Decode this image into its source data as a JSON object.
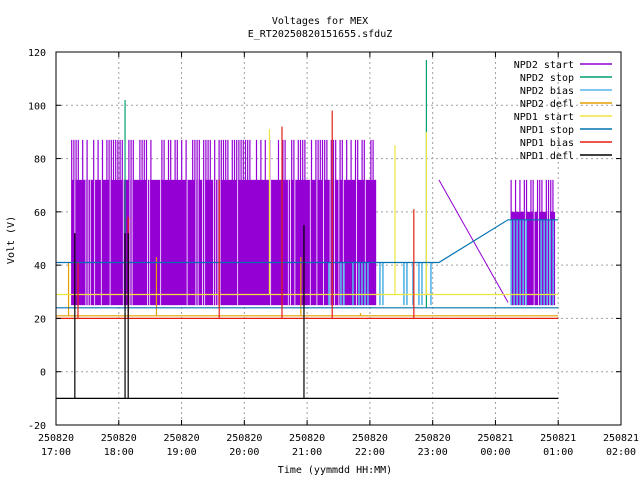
{
  "chart_data": {
    "type": "line",
    "title": "Voltages for MEX",
    "subtitle": "E_RT20250820151655.sfduZ",
    "xlabel": "Time (yymmdd HH:MM)",
    "ylabel": "Volt (V)",
    "ylim": [
      -20,
      120
    ],
    "yticks": [
      -20,
      0,
      20,
      40,
      60,
      80,
      100,
      120
    ],
    "xlim": [
      "2025-08-20 17:00",
      "2025-08-21 02:00"
    ],
    "xticks": [
      {
        "date": "250820",
        "time": "17:00",
        "h": 17
      },
      {
        "date": "250820",
        "time": "18:00",
        "h": 18
      },
      {
        "date": "250820",
        "time": "19:00",
        "h": 19
      },
      {
        "date": "250820",
        "time": "20:00",
        "h": 20
      },
      {
        "date": "250820",
        "time": "21:00",
        "h": 21
      },
      {
        "date": "250820",
        "time": "22:00",
        "h": 22
      },
      {
        "date": "250820",
        "time": "23:00",
        "h": 23
      },
      {
        "date": "250821",
        "time": "00:00",
        "h": 24
      },
      {
        "date": "250821",
        "time": "01:00",
        "h": 25
      },
      {
        "date": "250821",
        "time": "02:00",
        "h": 26
      }
    ],
    "grid": true,
    "legend_position": "top-right",
    "series": [
      {
        "name": "NPD2 start",
        "color": "#9400d3",
        "style": "square-wave",
        "segments": [
          {
            "t0": 17.25,
            "t1": 22.1,
            "low": 25,
            "high": 87,
            "mid": 72
          },
          {
            "t0": 24.25,
            "t1": 24.95,
            "low": 25,
            "high": 72,
            "mid": 60
          }
        ],
        "bridge": [
          [
            23.1,
            72
          ],
          [
            24.2,
            26
          ]
        ]
      },
      {
        "name": "NPD2 stop",
        "color": "#009e73",
        "style": "spikes",
        "base": 24,
        "spikes": [
          [
            18.1,
            102
          ],
          [
            18.85,
            24
          ],
          [
            22.9,
            117
          ]
        ]
      },
      {
        "name": "NPD2 bias",
        "color": "#56b4e9",
        "style": "steps-low",
        "segments": [
          {
            "t0": 21.3,
            "t1": 23.1,
            "low": 25,
            "high": 41
          },
          {
            "t0": 24.25,
            "t1": 24.95,
            "low": 25,
            "high": 57
          }
        ]
      },
      {
        "name": "NPD2 defl",
        "color": "#e69f00",
        "style": "flat",
        "points": [
          [
            17.0,
            21
          ],
          [
            25.0,
            21
          ]
        ],
        "spikes": [
          [
            17.2,
            41
          ],
          [
            18.6,
            43
          ],
          [
            20.9,
            43
          ],
          [
            21.85,
            22
          ]
        ]
      },
      {
        "name": "NPD1 start",
        "color": "#f0e442",
        "style": "flat",
        "points": [
          [
            17.0,
            29
          ],
          [
            25.0,
            29
          ]
        ],
        "spikes": [
          [
            20.4,
            91
          ],
          [
            22.4,
            85
          ],
          [
            22.9,
            90
          ]
        ]
      },
      {
        "name": "NPD1 stop",
        "color": "#0072b2",
        "style": "flat",
        "points": [
          [
            17.0,
            41
          ],
          [
            23.1,
            41
          ],
          [
            24.2,
            57
          ],
          [
            25.0,
            57
          ]
        ],
        "secondary": [
          [
            17.0,
            24
          ],
          [
            25.0,
            24
          ]
        ]
      },
      {
        "name": "NPD1 bias",
        "color": "#e51e10",
        "style": "flat",
        "points": [
          [
            17.0,
            20
          ],
          [
            25.0,
            20
          ]
        ],
        "spikes": [
          [
            17.35,
            41
          ],
          [
            18.15,
            58
          ],
          [
            19.6,
            72
          ],
          [
            20.6,
            92
          ],
          [
            21.4,
            98
          ],
          [
            22.7,
            61
          ]
        ]
      },
      {
        "name": "NPD1 defl",
        "color": "#000000",
        "style": "flat",
        "points": [
          [
            17.0,
            -10
          ],
          [
            25.0,
            -10
          ]
        ],
        "spikes": [
          [
            17.3,
            52
          ],
          [
            18.1,
            52
          ],
          [
            18.15,
            52
          ],
          [
            20.95,
            55
          ]
        ]
      }
    ]
  }
}
